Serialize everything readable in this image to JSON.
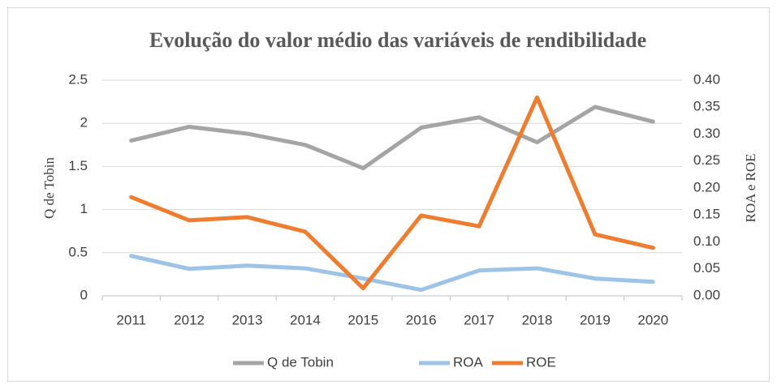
{
  "chart_data": {
    "type": "line",
    "title": "Evolução do valor médio das variáveis de rendibilidade",
    "y_label": "Q de Tobin",
    "y2_label": "ROA e ROE",
    "categories": [
      "2011",
      "2012",
      "2013",
      "2014",
      "2015",
      "2016",
      "2017",
      "2018",
      "2019",
      "2020"
    ],
    "series": [
      {
        "name": "Q de Tobin",
        "color": "#a5a5a5",
        "values": [
          1.8,
          1.96,
          1.88,
          1.75,
          1.48,
          1.95,
          2.07,
          1.78,
          2.19,
          2.02
        ]
      },
      {
        "name": "ROA",
        "color": "#9dc3e6",
        "axis": "y2",
        "values": [
          0.074,
          0.05,
          0.056,
          0.051,
          0.032,
          0.011,
          0.047,
          0.051,
          0.032,
          0.026
        ]
      },
      {
        "name": "ROE",
        "color": "#ed7d31",
        "axis": "y2",
        "values": [
          0.183,
          0.14,
          0.146,
          0.119,
          0.014,
          0.149,
          0.129,
          0.368,
          0.114,
          0.089
        ]
      }
    ],
    "ylim": [
      0,
      2.5
    ],
    "yticks": [
      0,
      0.5,
      1,
      1.5,
      2,
      2.5
    ],
    "y2lim": [
      0,
      0.4
    ],
    "y2ticks": [
      {
        "value": 0,
        "label": "0.00"
      },
      {
        "value": 0.05,
        "label": "0.05"
      },
      {
        "value": 0.1,
        "label": "0.10"
      },
      {
        "value": 0.15,
        "label": "0.15"
      },
      {
        "value": 0.2,
        "label": "0.20"
      },
      {
        "value": 0.25,
        "label": "0.25"
      },
      {
        "value": 0.3,
        "label": "0.30"
      },
      {
        "value": 0.35,
        "label": "0.35"
      },
      {
        "value": 0.4,
        "label": "0.40"
      }
    ],
    "grid": true,
    "legend": "bottom"
  }
}
